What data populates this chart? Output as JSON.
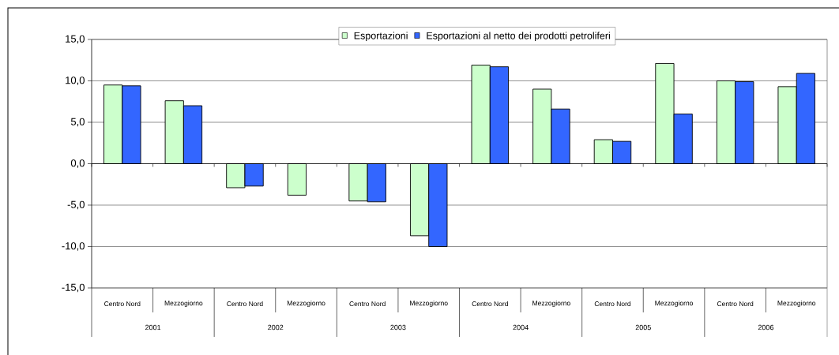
{
  "chart_data": {
    "type": "bar",
    "categories": [
      "Centro Nord",
      "Mezzogiorno",
      "Centro Nord",
      "Mezzogiorno",
      "Centro Nord",
      "Mezzogiorno",
      "Centro Nord",
      "Mezzogiorno",
      "Centro Nord",
      "Mezzogiorno",
      "Centro Nord",
      "Mezzogiorno"
    ],
    "series": [
      {
        "name": "Esportazioni",
        "color": "#ccffcc",
        "values": [
          9.5,
          7.6,
          -2.9,
          -3.8,
          -4.5,
          -8.7,
          11.9,
          9.0,
          2.9,
          12.1,
          10.0,
          9.3
        ]
      },
      {
        "name": "Esportazioni al netto dei prodotti petroliferi",
        "color": "#3366ff",
        "values": [
          9.4,
          7.0,
          -2.7,
          null,
          -4.6,
          -10.0,
          11.7,
          6.6,
          2.7,
          6.0,
          9.9,
          10.9
        ]
      }
    ],
    "annotations": [
      "2001",
      "2002",
      "2003",
      "2004",
      "2005",
      "2006"
    ],
    "ylim": [
      -15,
      15
    ],
    "yticks": [
      {
        "value": -15,
        "label": "-15,0"
      },
      {
        "value": -10,
        "label": "-10,0"
      },
      {
        "value": -5,
        "label": "-5,0"
      },
      {
        "value": 0,
        "label": "0,0"
      },
      {
        "value": 5,
        "label": "5,0"
      },
      {
        "value": 10,
        "label": "10,0"
      },
      {
        "value": 15,
        "label": "15,0"
      }
    ],
    "grid": "y",
    "legend": "top"
  }
}
